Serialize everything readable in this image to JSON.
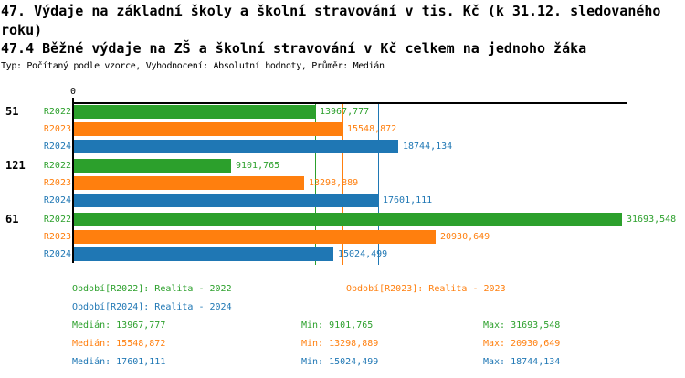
{
  "header": {
    "title": "47. Výdaje na základní školy a školní stravování v tis. Kč (k 31.12. sledovaného roku)",
    "subtitle": "47.4 Běžné výdaje na ZŠ a školní stravování v Kč celkem na jednoho žáka",
    "meta": "Typ: Počítaný podle vzorce, Vyhodnocení: Absolutní hodnoty, Průměr: Medián"
  },
  "axis": {
    "zero_label": "0"
  },
  "colors": {
    "r2022": "#2ca02c",
    "r2023": "#ff7f0e",
    "r2024": "#1f77b4",
    "axis": "#000000"
  },
  "chart_data": {
    "type": "bar",
    "orientation": "horizontal",
    "xlim": [
      0,
      31693.548
    ],
    "grid": false,
    "series_names": [
      "R2022",
      "R2023",
      "R2024"
    ],
    "series_keys": [
      "r2022",
      "r2023",
      "r2024"
    ],
    "groups": [
      {
        "label": "51",
        "values": [
          13967.777,
          15548.872,
          18744.134
        ],
        "display": [
          "13967,777",
          "15548,872",
          "18744,134"
        ]
      },
      {
        "label": "121",
        "values": [
          9101.765,
          13298.889,
          17601.111
        ],
        "display": [
          "9101,765",
          "13298,889",
          "17601,111"
        ]
      },
      {
        "label": "61",
        "values": [
          31693.548,
          20930.649,
          15024.499
        ],
        "display": [
          "31693,548",
          "20930,649",
          "15024,499"
        ]
      }
    ],
    "median_lines": [
      13967.777,
      15548.872,
      17601.111
    ]
  },
  "legend": {
    "items": [
      {
        "label": "Období[R2022]: Realita - 2022",
        "series": "r2022"
      },
      {
        "label": "Období[R2023]: Realita - 2023",
        "series": "r2023"
      },
      {
        "label": "Období[R2024]: Realita - 2024",
        "series": "r2024"
      }
    ]
  },
  "stats": {
    "rows": [
      {
        "series": "r2022",
        "median": "Medián: 13967,777",
        "min": "Min: 9101,765",
        "max": "Max: 31693,548"
      },
      {
        "series": "r2023",
        "median": "Medián: 15548,872",
        "min": "Min: 13298,889",
        "max": "Max: 20930,649"
      },
      {
        "series": "r2024",
        "median": "Medián: 17601,111",
        "min": "Min: 15024,499",
        "max": "Max: 18744,134"
      }
    ]
  }
}
